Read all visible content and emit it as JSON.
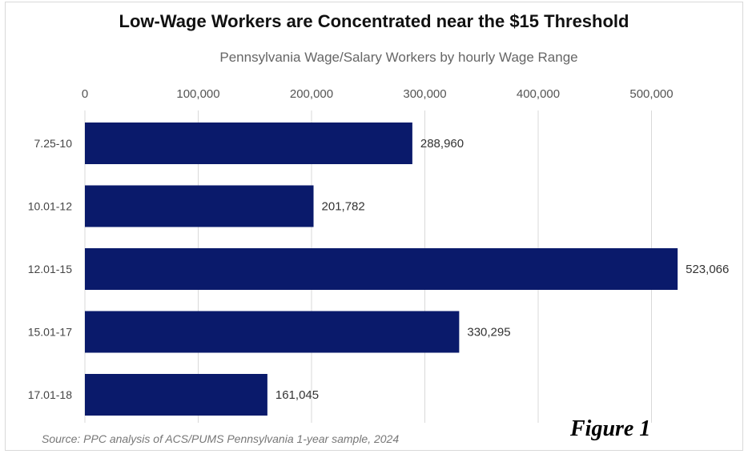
{
  "chart_data": {
    "type": "bar",
    "orientation": "horizontal",
    "title": "Low-Wage Workers are Concentrated near the $15 Threshold",
    "subtitle": "Pennsylvania Wage/Salary Workers by hourly Wage Range",
    "categories": [
      "7.25-10",
      "10.01-12",
      "12.01-15",
      "15.01-17",
      "17.01-18"
    ],
    "values": [
      288960,
      201782,
      523066,
      330295,
      161045
    ],
    "data_labels": [
      "288,960",
      "201,782",
      "523,066",
      "330,295",
      "161,045"
    ],
    "x_ticks": [
      0,
      100000,
      200000,
      300000,
      400000,
      500000
    ],
    "x_tick_labels": [
      "0",
      "100,000",
      "200,000",
      "300,000",
      "400,000",
      "500,000"
    ],
    "xlim": [
      0,
      523066
    ],
    "x_axis_position": "top",
    "grid": true,
    "legend": "none",
    "bar_color": "#0a1a6b",
    "grid_color": "#d9d9d9"
  },
  "source_note": "Source: PPC analysis of ACS/PUMS Pennsylvania 1-year sample, 2024",
  "figure_label": "Figure 1"
}
